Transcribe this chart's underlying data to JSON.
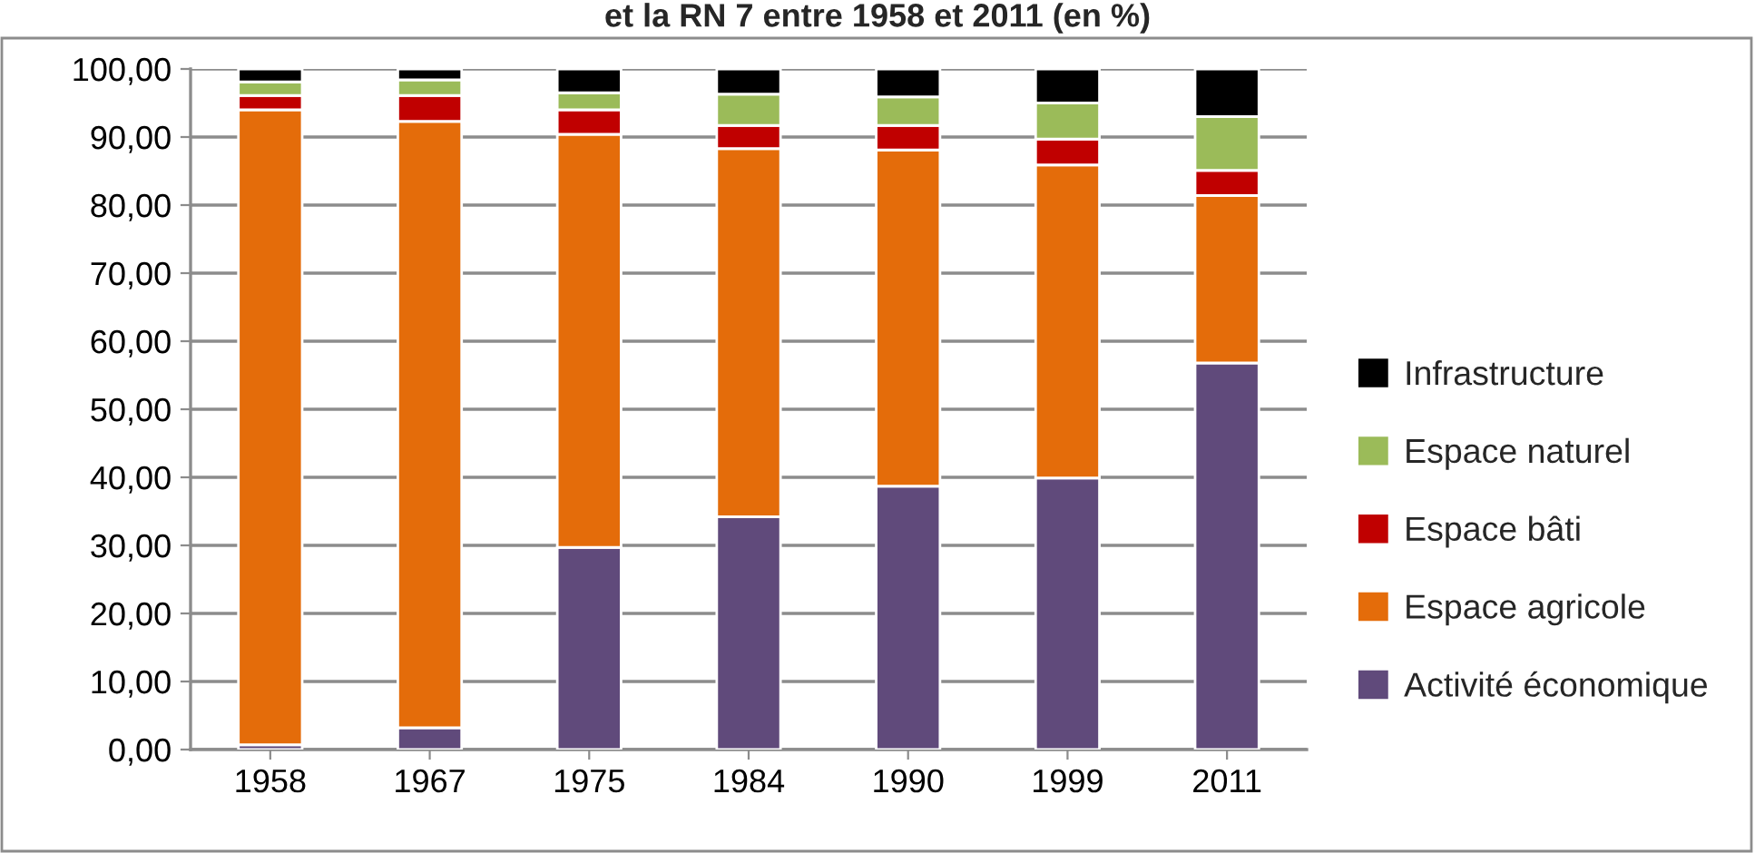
{
  "chart_data": {
    "type": "bar",
    "title": "et la RN 7 entre 1958 et 2011 (en %)",
    "stacked": true,
    "categories": [
      "1958",
      "1967",
      "1975",
      "1984",
      "1990",
      "1999",
      "2011"
    ],
    "series": [
      {
        "name": "Activité économique",
        "color": "#604a7b",
        "values": [
          0.7,
          3.2,
          29.7,
          34.2,
          38.7,
          39.9,
          56.8
        ]
      },
      {
        "name": "Espace agricole",
        "color": "#e46c0a",
        "values": [
          93.3,
          89.1,
          60.7,
          54.1,
          49.4,
          46.0,
          24.6
        ]
      },
      {
        "name": "Espace bâti",
        "color": "#c00000",
        "values": [
          2.1,
          3.8,
          3.6,
          3.4,
          3.6,
          3.8,
          3.7
        ]
      },
      {
        "name": "Espace naturel",
        "color": "#9bbb59",
        "values": [
          2.0,
          2.3,
          2.5,
          4.6,
          4.2,
          5.3,
          7.9
        ]
      },
      {
        "name": "Infrastructure",
        "color": "#000000",
        "values": [
          1.9,
          1.6,
          3.5,
          3.7,
          4.1,
          5.0,
          7.0
        ]
      }
    ],
    "ylim": [
      0,
      100
    ],
    "yticks": [
      {
        "value": 0,
        "label": "0,00"
      },
      {
        "value": 10,
        "label": "10,00"
      },
      {
        "value": 20,
        "label": "20,00"
      },
      {
        "value": 30,
        "label": "30,00"
      },
      {
        "value": 40,
        "label": "40,00"
      },
      {
        "value": 50,
        "label": "50,00"
      },
      {
        "value": 60,
        "label": "60,00"
      },
      {
        "value": 70,
        "label": "70,00"
      },
      {
        "value": 80,
        "label": "80,00"
      },
      {
        "value": 90,
        "label": "90,00"
      },
      {
        "value": 100,
        "label": "100,00"
      }
    ],
    "grid": "y",
    "legend": "right"
  }
}
